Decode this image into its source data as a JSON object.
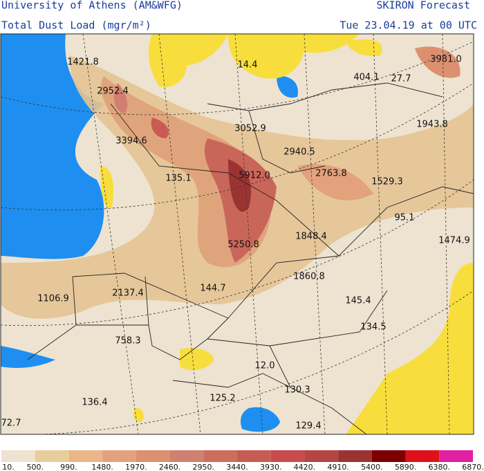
{
  "header": {
    "left_title": "University of Athens (AM&WFG)",
    "right_title": "SKIRON Forecast",
    "subtitle": "Total Dust Load (mgr/m²)",
    "date": "Tue 23.04.19 at 00 UTC"
  },
  "map": {
    "labels": [
      "1421.8",
      "2952.4",
      "3394.6",
      "3052.9",
      "2940.5",
      "5912.0",
      "2763.8",
      "135.1",
      "1529.3",
      "95.1",
      "1848.4",
      "1474.9",
      "5250.8",
      "1860.8",
      "144.7",
      "2137.4",
      "1106.9",
      "145.4",
      "134.5",
      "758.3",
      "12.0",
      "130.3",
      "125.2",
      "136.4",
      "72.7",
      "129.4",
      "14.4",
      "404.1",
      "27.7",
      "3981.0",
      "1943.8"
    ]
  },
  "colorbar": {
    "labels": [
      "10.",
      "500.",
      "990.",
      "1480.",
      "1970.",
      "2460.",
      "2950.",
      "3440.",
      "3930.",
      "4420.",
      "4910.",
      "5400.",
      "5890.",
      "6380.",
      "6870."
    ],
    "colors": [
      "#ede3d0",
      "#e8cd9c",
      "#eab68a",
      "#e3a27c",
      "#dd9070",
      "#d08070",
      "#cc6e5e",
      "#c85c55",
      "#c84c4c",
      "#b64444",
      "#9c3333",
      "#7d0000",
      "#e0101a",
      "#e020a0"
    ]
  }
}
